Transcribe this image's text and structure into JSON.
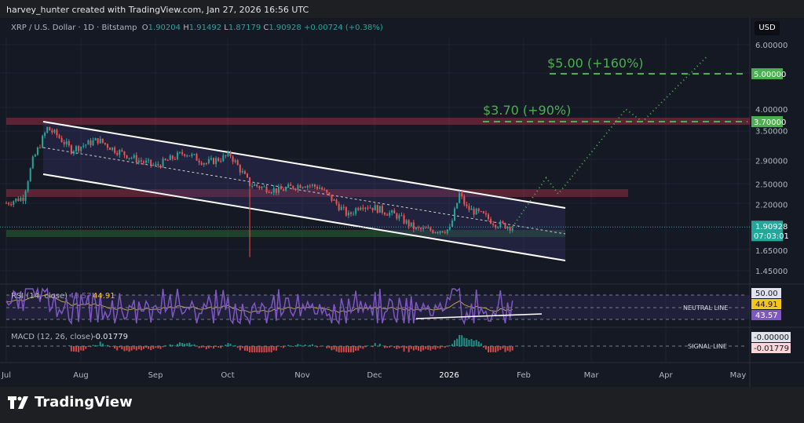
{
  "credit": "harvey_hunter created with TradingView.com, Jan 27, 2026 16:56 UTC",
  "legend": {
    "symbol": "XRP / U.S. Dollar · 1D · Bitstamp",
    "o_label": "O",
    "o": "1.90204",
    "h_label": "H",
    "h": "1.91492",
    "l_label": "L",
    "l": "1.87179",
    "c_label": "C",
    "c": "1.90928",
    "change": "+0.00724 (+0.38%)"
  },
  "currency_button": "USD",
  "price_axis": [
    "6.00000",
    "5.00000",
    "4.00000",
    "3.70000",
    "3.50000",
    "2.90000",
    "2.50000",
    "2.20000",
    "1.65000",
    "1.45000"
  ],
  "price_tags": {
    "target_high": "5.00000",
    "target_low": "3.70000",
    "last": "1.90928",
    "countdown": "07:03:01"
  },
  "annotations": {
    "target_high": "$5.00 (+160%)",
    "target_low": "$3.70 (+90%)"
  },
  "rsi": {
    "label": "RSI (14, close)",
    "rsi_value": "43.57",
    "ma_value": "44.91",
    "axis": [
      "50.00",
      "44.91",
      "43.57"
    ],
    "neutral": "NEUTRAL LINE"
  },
  "macd": {
    "label": "MACD (12, 26, close)",
    "value": "-0.01779",
    "axis": [
      "-0.00000",
      "-0.01779"
    ],
    "signal": "SIGNAL LINE"
  },
  "time_axis": [
    "Jul",
    "Aug",
    "Sep",
    "Oct",
    "Nov",
    "Dec",
    "2026",
    "Feb",
    "Mar",
    "Apr",
    "May"
  ],
  "brand": "TradingView",
  "colors": {
    "up": "#26a69a",
    "down": "#ef5350",
    "target": "#4caf50",
    "rsi": "#7e57c2",
    "rsi_ma": "#f5c518",
    "zone_red": "#b2334a",
    "zone_green": "#2e7d32"
  },
  "chart_data": {
    "type": "candlestick",
    "scale": "log",
    "ylim": [
      1.4,
      6.3
    ],
    "anchors": [
      [
        "2025-07-01",
        2.22
      ],
      [
        "2025-07-08",
        2.3
      ],
      [
        "2025-07-12",
        2.9
      ],
      [
        "2025-07-18",
        3.55
      ],
      [
        "2025-07-22",
        3.4
      ],
      [
        "2025-07-28",
        3.1
      ],
      [
        "2025-08-08",
        3.3
      ],
      [
        "2025-08-15",
        3.1
      ],
      [
        "2025-08-25",
        2.9
      ],
      [
        "2025-09-01",
        2.8
      ],
      [
        "2025-09-13",
        3.05
      ],
      [
        "2025-09-22",
        2.85
      ],
      [
        "2025-10-02",
        3.0
      ],
      [
        "2025-10-10",
        2.5
      ],
      [
        "2025-10-15",
        2.45
      ],
      [
        "2025-10-22",
        2.4
      ],
      [
        "2025-11-01",
        2.5
      ],
      [
        "2025-11-08",
        2.45
      ],
      [
        "2025-11-20",
        2.05
      ],
      [
        "2025-11-25",
        2.2
      ],
      [
        "2025-12-01",
        2.15
      ],
      [
        "2025-12-10",
        2.05
      ],
      [
        "2025-12-18",
        1.88
      ],
      [
        "2025-12-25",
        1.87
      ],
      [
        "2026-01-01",
        1.88
      ],
      [
        "2026-01-05",
        2.35
      ],
      [
        "2026-01-08",
        2.15
      ],
      [
        "2026-01-15",
        2.05
      ],
      [
        "2026-01-20",
        1.95
      ],
      [
        "2026-01-27",
        1.90928
      ]
    ],
    "projection": [
      [
        "2026-01-27",
        1.91
      ],
      [
        "2026-02-10",
        2.6
      ],
      [
        "2026-02-15",
        2.35
      ],
      [
        "2026-03-15",
        4.0
      ],
      [
        "2026-03-22",
        3.7
      ],
      [
        "2026-04-18",
        5.6
      ]
    ],
    "levels": [
      3.7,
      5.0
    ]
  }
}
